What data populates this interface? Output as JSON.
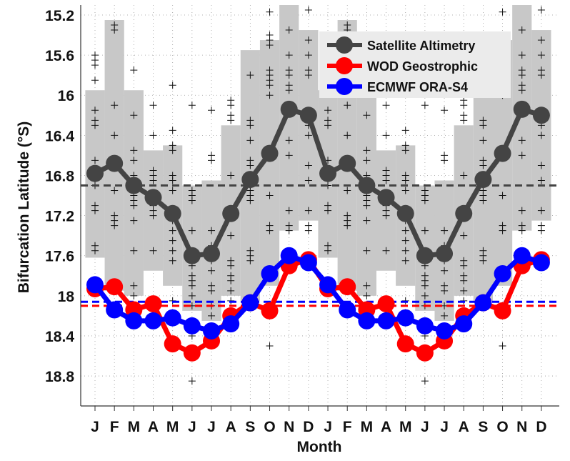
{
  "chart_data": {
    "type": "line",
    "xlabel": "Month",
    "ylabel": "Bifurcation Latitude (°S)",
    "ylabel_parts": {
      "main": "Bifurcation Latitude (",
      "sup": "o",
      "unit": "S)"
    },
    "y_inverted": true,
    "ylim": [
      15.1,
      19.1
    ],
    "xlim": [
      0.27,
      24.9
    ],
    "grid": true,
    "legend_position": "top-right",
    "x_tick_labels": [
      "J",
      "F",
      "M",
      "A",
      "M",
      "J",
      "J",
      "A",
      "S",
      "O",
      "N",
      "D",
      "J",
      "F",
      "M",
      "A",
      "M",
      "J",
      "J",
      "A",
      "S",
      "O",
      "N",
      "D"
    ],
    "y_ticks": [
      15.2,
      15.6,
      16,
      16.4,
      16.8,
      17.2,
      17.6,
      18,
      18.4,
      18.8
    ],
    "y_tick_labels": [
      "15.2",
      "15.6",
      "16",
      "16.4",
      "16.8",
      "17.2",
      "17.6",
      "18",
      "18.4",
      "18.8"
    ],
    "series": [
      {
        "name": "Satellite Altimetry",
        "color": "#444444",
        "values": [
          16.78,
          16.68,
          16.9,
          17.02,
          17.18,
          17.6,
          17.58,
          17.18,
          16.84,
          16.58,
          16.14,
          16.2,
          16.78,
          16.68,
          16.9,
          17.02,
          17.18,
          17.6,
          17.58,
          17.18,
          16.84,
          16.58,
          16.14,
          16.2
        ],
        "mean": 16.9
      },
      {
        "name": "WOD Geostrophic",
        "color": "#ff0000",
        "values": [
          17.93,
          17.91,
          18.14,
          18.08,
          18.48,
          18.57,
          18.45,
          18.2,
          18.07,
          18.15,
          17.7,
          17.64,
          17.93,
          17.91,
          18.14,
          18.08,
          18.48,
          18.57,
          18.45,
          18.2,
          18.07,
          18.15,
          17.7,
          17.64
        ],
        "mean": 18.1
      },
      {
        "name": "ECMWF ORA-S4",
        "color": "#0000ff",
        "values": [
          17.89,
          18.14,
          18.25,
          18.25,
          18.22,
          18.3,
          18.35,
          18.28,
          18.07,
          17.78,
          17.6,
          17.67,
          17.89,
          18.14,
          18.25,
          18.25,
          18.22,
          18.3,
          18.35,
          18.28,
          18.07,
          17.78,
          17.6,
          17.67
        ],
        "mean": 18.06
      }
    ],
    "spread_band": {
      "color": "#c8c8c8",
      "ranges": [
        [
          15.95,
          17.62
        ],
        [
          15.25,
          17.95
        ],
        [
          15.95,
          18.0
        ],
        [
          16.55,
          17.75
        ],
        [
          16.5,
          17.9
        ],
        [
          16.9,
          18.15
        ],
        [
          16.85,
          18.25
        ],
        [
          16.3,
          18.0
        ],
        [
          15.55,
          18.05
        ],
        [
          15.45,
          17.9
        ],
        [
          15.1,
          17.35
        ],
        [
          15.35,
          17.25
        ]
      ]
    },
    "individual_years": [
      [
        15.6,
        15.65,
        15.7,
        15.85,
        16.15,
        16.25,
        16.3,
        16.65,
        16.9,
        17.1,
        17.15,
        17.5,
        17.55
      ],
      [
        15.3,
        15.35,
        16.1,
        16.4,
        16.7,
        16.95,
        17.2,
        17.25,
        17.3
      ],
      [
        15.75,
        16.2,
        16.55,
        16.65,
        16.8,
        17.0,
        17.05,
        17.1,
        17.25,
        17.55,
        17.9,
        18.0
      ],
      [
        16.1,
        16.4,
        16.75,
        16.8,
        16.85,
        17.05,
        17.1,
        17.15,
        17.2,
        17.55
      ],
      [
        15.9,
        16.35,
        16.5,
        16.55,
        16.8,
        16.85,
        16.95,
        17.25,
        17.35,
        17.45,
        17.55,
        17.65,
        18.05
      ],
      [
        16.1,
        16.95,
        17.0,
        17.05,
        17.35,
        17.7,
        17.8,
        17.85,
        17.9,
        18.0,
        18.1,
        18.4,
        18.85
      ],
      [
        16.15,
        16.6,
        16.65,
        17.35,
        17.5,
        17.65,
        17.75,
        17.9,
        17.95,
        18.1,
        18.2
      ],
      [
        16.05,
        16.1,
        16.2,
        16.25,
        16.8,
        17.4,
        17.65,
        17.7,
        17.8,
        17.85,
        17.95,
        18.05
      ],
      [
        15.8,
        16.25,
        16.3,
        16.45,
        16.65,
        16.7,
        16.9,
        16.95,
        17.0,
        17.05,
        17.55,
        17.6,
        17.65
      ],
      [
        15.17,
        15.4,
        15.45,
        15.5,
        15.75,
        15.8,
        15.85,
        15.9,
        16.0,
        17.0,
        17.3,
        17.35,
        17.75,
        18.5
      ],
      [
        15.35,
        15.6,
        15.75,
        15.8,
        15.9,
        15.95,
        16.45,
        16.6,
        17.15,
        17.3,
        17.35
      ],
      [
        15.15,
        15.45,
        15.6,
        15.75,
        15.8,
        16.3,
        16.4,
        16.7,
        16.85,
        17.15,
        17.3,
        17.35
      ]
    ]
  }
}
